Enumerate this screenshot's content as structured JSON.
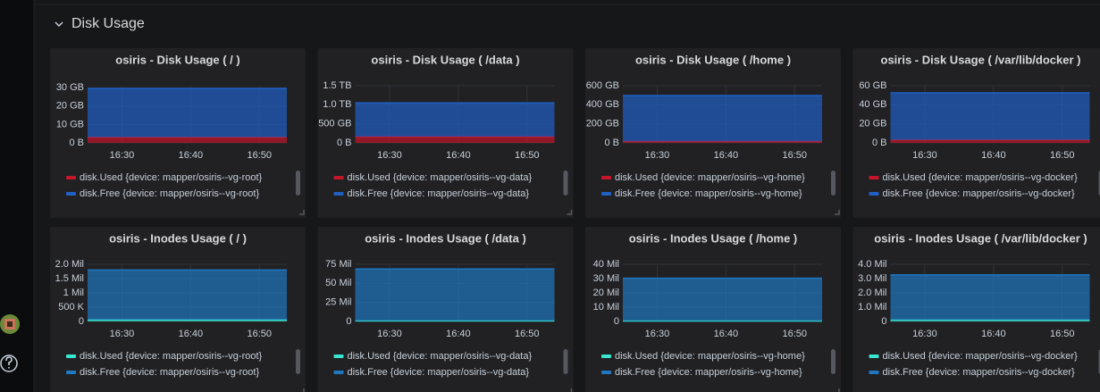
{
  "section": {
    "title": "Disk Usage"
  },
  "chart_data": [
    {
      "type": "area",
      "stacked": true,
      "title": "osiris - Disk Usage ( / )",
      "x": [
        "16:25",
        "16:54"
      ],
      "xlim": [
        "16:25",
        "16:54"
      ],
      "xticks": [
        "16:30",
        "16:40",
        "16:50"
      ],
      "ylim": [
        0,
        31
      ],
      "yticks": [
        {
          "value": 0,
          "label": "0 B"
        },
        {
          "value": 10,
          "label": "10 GB"
        },
        {
          "value": 20,
          "label": "20 GB"
        },
        {
          "value": 30,
          "label": "30 GB"
        }
      ],
      "grid": true,
      "series": [
        {
          "name": "disk.Used {device: mapper/osiris--vg-root}",
          "color": "#c4162a",
          "values": [
            3,
            3
          ]
        },
        {
          "name": "disk.Free {device: mapper/osiris--vg-root}",
          "color": "#1f60c4",
          "values": [
            26.5,
            26.5
          ]
        }
      ]
    },
    {
      "type": "area",
      "stacked": true,
      "title": "osiris - Disk Usage ( /data )",
      "x": [
        "16:25",
        "16:54"
      ],
      "xlim": [
        "16:25",
        "16:54"
      ],
      "xticks": [
        "16:30",
        "16:40",
        "16:50"
      ],
      "ylim": [
        0,
        1.5
      ],
      "yticks": [
        {
          "value": 0,
          "label": "0 B"
        },
        {
          "value": 0.5,
          "label": "500 GB"
        },
        {
          "value": 1.0,
          "label": "1.0 TB"
        },
        {
          "value": 1.5,
          "label": "1.5 TB"
        }
      ],
      "grid": true,
      "series": [
        {
          "name": "disk.Used {device: mapper/osiris--vg-data}",
          "color": "#c4162a",
          "values": [
            0.16,
            0.16
          ]
        },
        {
          "name": "disk.Free {device: mapper/osiris--vg-data}",
          "color": "#1f60c4",
          "values": [
            0.89,
            0.89
          ]
        }
      ]
    },
    {
      "type": "area",
      "stacked": true,
      "title": "osiris - Disk Usage ( /home )",
      "x": [
        "16:25",
        "16:54"
      ],
      "xlim": [
        "16:25",
        "16:54"
      ],
      "xticks": [
        "16:30",
        "16:40",
        "16:50"
      ],
      "ylim": [
        0,
        600
      ],
      "yticks": [
        {
          "value": 0,
          "label": "0 B"
        },
        {
          "value": 200,
          "label": "200 GB"
        },
        {
          "value": 400,
          "label": "400 GB"
        },
        {
          "value": 600,
          "label": "600 GB"
        }
      ],
      "grid": true,
      "series": [
        {
          "name": "disk.Used {device: mapper/osiris--vg-home}",
          "color": "#c4162a",
          "values": [
            15,
            15
          ]
        },
        {
          "name": "disk.Free {device: mapper/osiris--vg-home}",
          "color": "#1f60c4",
          "values": [
            482,
            482
          ]
        }
      ]
    },
    {
      "type": "area",
      "stacked": true,
      "title": "osiris - Disk Usage ( /var/lib/docker )",
      "x": [
        "16:25",
        "16:54"
      ],
      "xlim": [
        "16:25",
        "16:54"
      ],
      "xticks": [
        "16:30",
        "16:40",
        "16:50"
      ],
      "ylim": [
        0,
        60
      ],
      "yticks": [
        {
          "value": 0,
          "label": "0 B"
        },
        {
          "value": 20,
          "label": "20 GB"
        },
        {
          "value": 40,
          "label": "40 GB"
        },
        {
          "value": 60,
          "label": "60 GB"
        }
      ],
      "grid": true,
      "series": [
        {
          "name": "disk.Used {device: mapper/osiris--vg-docker}",
          "color": "#c4162a",
          "values": [
            3,
            3
          ]
        },
        {
          "name": "disk.Free {device: mapper/osiris--vg-docker}",
          "color": "#1f60c4",
          "values": [
            49.5,
            49.5
          ]
        }
      ]
    },
    {
      "type": "area",
      "stacked": true,
      "title": "osiris - Inodes Usage ( / )",
      "x": [
        "16:25",
        "16:54"
      ],
      "xlim": [
        "16:25",
        "16:54"
      ],
      "xticks": [
        "16:30",
        "16:40",
        "16:50"
      ],
      "ylim": [
        0,
        2.0
      ],
      "yticks": [
        0,
        {
          "value": 0.5,
          "label": "500 K"
        },
        {
          "value": 1.0,
          "label": "1 Mil"
        },
        {
          "value": 1.5,
          "label": "1.5 Mil"
        },
        {
          "value": 2.0,
          "label": "2.0 Mil"
        }
      ],
      "grid": true,
      "series": [
        {
          "name": "disk.Used {device: mapper/osiris--vg-root}",
          "color": "#37e6d0",
          "values": [
            0.06,
            0.06
          ]
        },
        {
          "name": "disk.Free {device: mapper/osiris--vg-root}",
          "color": "#1f78c1",
          "values": [
            1.74,
            1.74
          ]
        }
      ]
    },
    {
      "type": "area",
      "stacked": true,
      "title": "osiris - Inodes Usage ( /data )",
      "x": [
        "16:25",
        "16:54"
      ],
      "xlim": [
        "16:25",
        "16:54"
      ],
      "xticks": [
        "16:30",
        "16:40",
        "16:50"
      ],
      "ylim": [
        0,
        75
      ],
      "yticks": [
        0,
        {
          "value": 25,
          "label": "25 Mil"
        },
        {
          "value": 50,
          "label": "50 Mil"
        },
        {
          "value": 75,
          "label": "75 Mil"
        }
      ],
      "grid": true,
      "series": [
        {
          "name": "disk.Used {device: mapper/osiris--vg-data}",
          "color": "#37e6d0",
          "values": [
            0.8,
            0.8
          ]
        },
        {
          "name": "disk.Free {device: mapper/osiris--vg-data}",
          "color": "#1f78c1",
          "values": [
            68,
            68
          ]
        }
      ]
    },
    {
      "type": "area",
      "stacked": true,
      "title": "osiris - Inodes Usage ( /home )",
      "x": [
        "16:25",
        "16:54"
      ],
      "xlim": [
        "16:25",
        "16:54"
      ],
      "xticks": [
        "16:30",
        "16:40",
        "16:50"
      ],
      "ylim": [
        0,
        40
      ],
      "yticks": [
        0,
        {
          "value": 10,
          "label": "10 Mil"
        },
        {
          "value": 20,
          "label": "20 Mil"
        },
        {
          "value": 30,
          "label": "30 Mil"
        },
        {
          "value": 40,
          "label": "40 Mil"
        }
      ],
      "grid": true,
      "series": [
        {
          "name": "disk.Used {device: mapper/osiris--vg-home}",
          "color": "#37e6d0",
          "values": [
            0.3,
            0.3
          ]
        },
        {
          "name": "disk.Free {device: mapper/osiris--vg-home}",
          "color": "#1f78c1",
          "values": [
            29.9,
            29.9
          ]
        }
      ]
    },
    {
      "type": "area",
      "stacked": true,
      "title": "osiris - Inodes Usage ( /var/lib/docker )",
      "x": [
        "16:25",
        "16:54"
      ],
      "xlim": [
        "16:25",
        "16:54"
      ],
      "xticks": [
        "16:30",
        "16:40",
        "16:50"
      ],
      "ylim": [
        0,
        4.0
      ],
      "yticks": [
        0,
        {
          "value": 1.0,
          "label": "1.0 Mil"
        },
        {
          "value": 2.0,
          "label": "2.0 Mil"
        },
        {
          "value": 3.0,
          "label": "3.0 Mil"
        },
        {
          "value": 4.0,
          "label": "4.0 Mil"
        }
      ],
      "grid": true,
      "series": [
        {
          "name": "disk.Used {device: mapper/osiris--vg-docker}",
          "color": "#37e6d0",
          "values": [
            0.1,
            0.1
          ]
        },
        {
          "name": "disk.Free {device: mapper/osiris--vg-docker}",
          "color": "#1f78c1",
          "values": [
            3.16,
            3.16
          ]
        }
      ]
    }
  ]
}
